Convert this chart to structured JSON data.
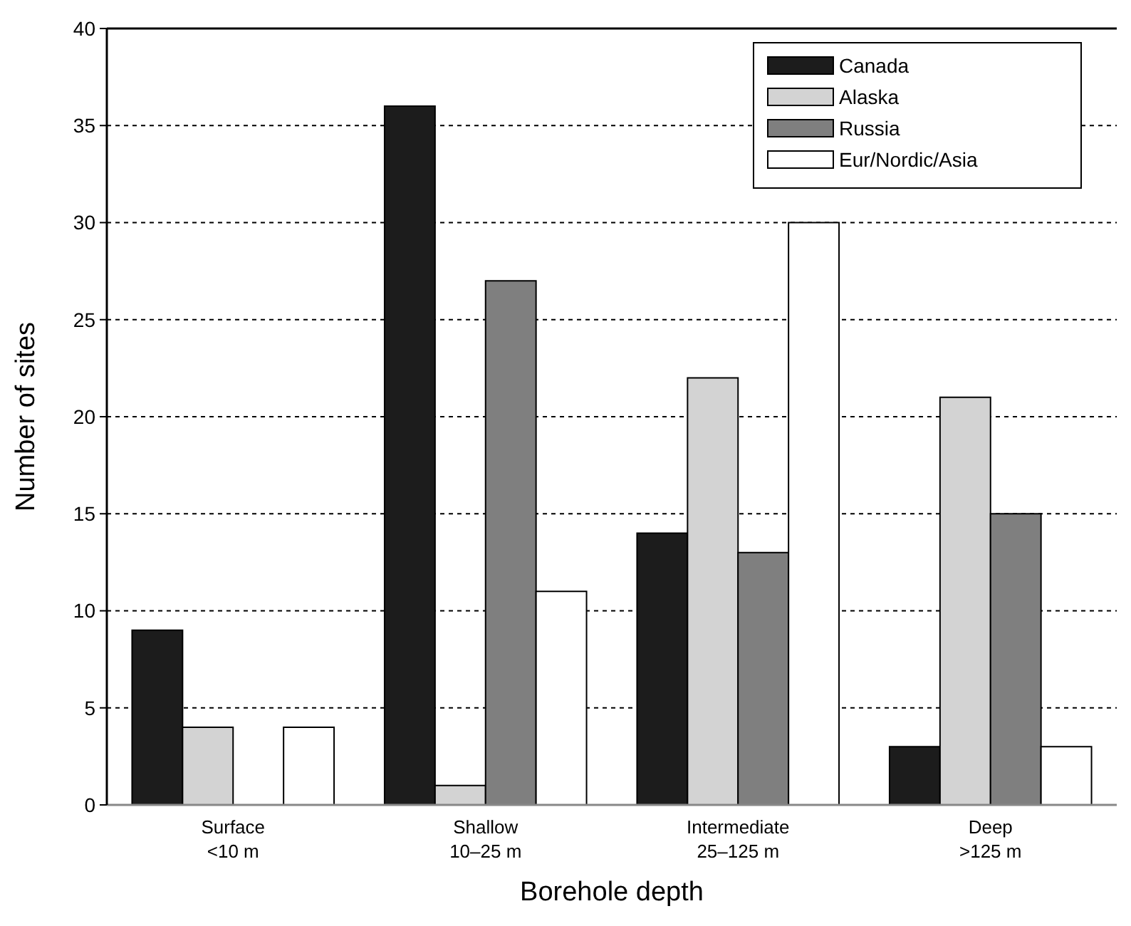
{
  "chart_data": {
    "type": "bar",
    "xlabel": "Borehole depth",
    "ylabel": "Number of sites",
    "categories": [
      "Surface\n<10 m",
      "Shallow\n10–25 m",
      "Intermediate\n25–125 m",
      "Deep\n>125 m"
    ],
    "series": [
      {
        "name": "Canada",
        "color": "#1c1c1c",
        "values": [
          9,
          36,
          14,
          3
        ]
      },
      {
        "name": "Alaska",
        "color": "#d3d3d3",
        "values": [
          4,
          1,
          22,
          21
        ]
      },
      {
        "name": "Russia",
        "color": "#7f7f7f",
        "values": [
          0,
          27,
          13,
          15
        ]
      },
      {
        "name": "Eur/Nordic/Asia",
        "color": "#ffffff",
        "values": [
          4,
          11,
          30,
          3
        ]
      }
    ],
    "ylim": [
      0,
      40
    ],
    "yticks": [
      0,
      5,
      10,
      15,
      20,
      25,
      30,
      35,
      40
    ],
    "grid": "y",
    "legend": "top right"
  }
}
